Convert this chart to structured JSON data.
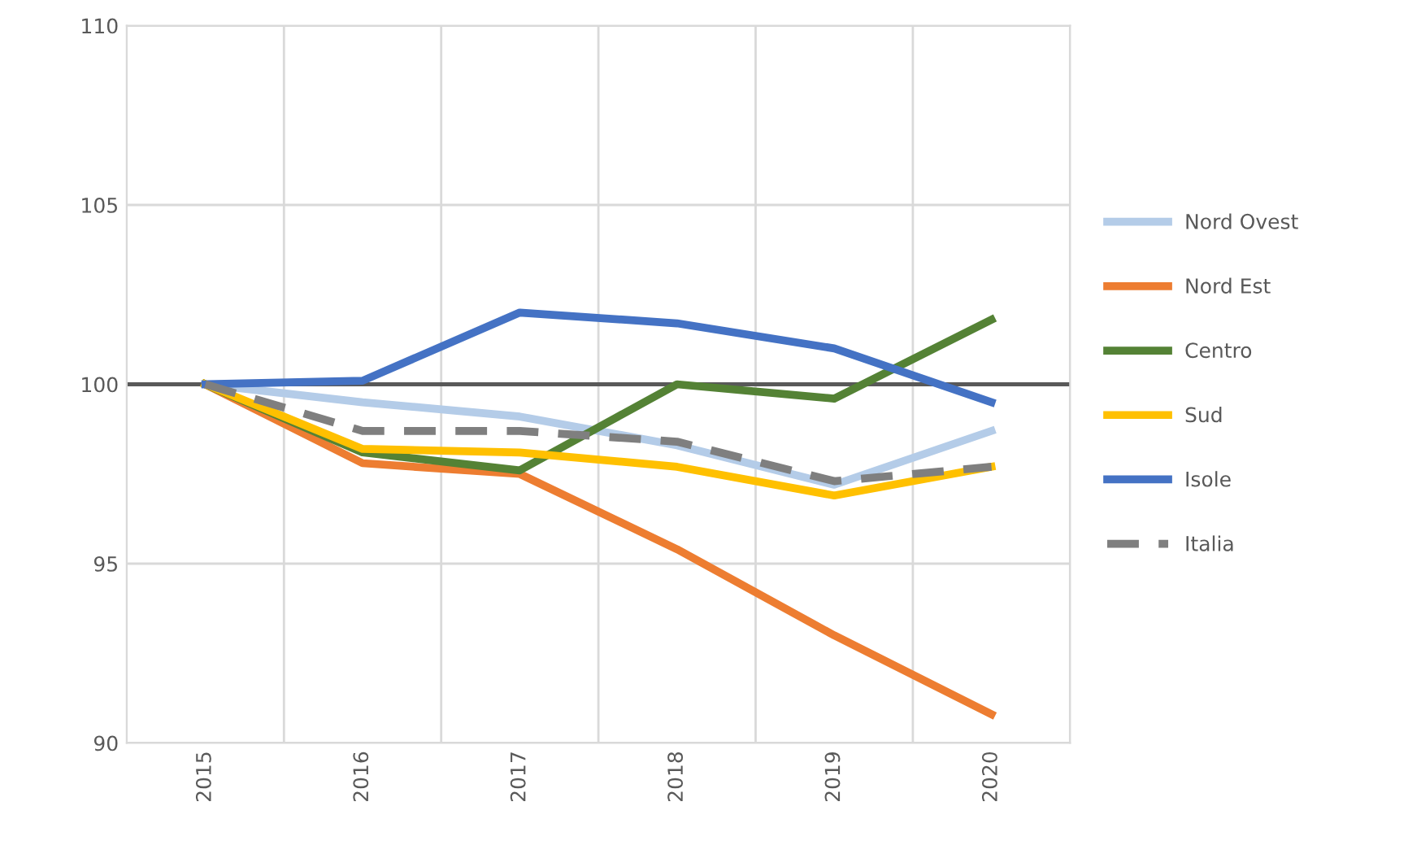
{
  "chart_data": {
    "type": "line",
    "categories": [
      "2015",
      "2016",
      "2017",
      "2018",
      "2019",
      "2020"
    ],
    "series": [
      {
        "name": "Nord Ovest",
        "color": "#b4cce8",
        "values": [
          100,
          99.5,
          99.1,
          98.3,
          97.2,
          98.7
        ]
      },
      {
        "name": "Nord Est",
        "color": "#ed7d31",
        "values": [
          100,
          97.8,
          97.5,
          95.4,
          93.0,
          90.8
        ]
      },
      {
        "name": "Centro",
        "color": "#548235",
        "values": [
          100,
          98.1,
          97.6,
          100.0,
          99.6,
          101.8
        ]
      },
      {
        "name": "Sud",
        "color": "#ffc000",
        "values": [
          100,
          98.2,
          98.1,
          97.7,
          96.9,
          97.7
        ]
      },
      {
        "name": "Isole",
        "color": "#4472c4",
        "values": [
          100,
          100.1,
          102.0,
          101.7,
          101.0,
          99.5
        ]
      },
      {
        "name": "Italia",
        "color": "#7f7f7f",
        "line_style": "dashed",
        "values": [
          100,
          98.7,
          98.7,
          98.4,
          97.3,
          97.7
        ]
      }
    ],
    "ylim": [
      90,
      110
    ],
    "yticks": [
      90,
      95,
      100,
      105,
      110
    ],
    "ref_lines": [
      {
        "axis": "y",
        "value": 100,
        "color": "#595959"
      }
    ],
    "grid": true,
    "legend": "right",
    "marker": "none"
  }
}
